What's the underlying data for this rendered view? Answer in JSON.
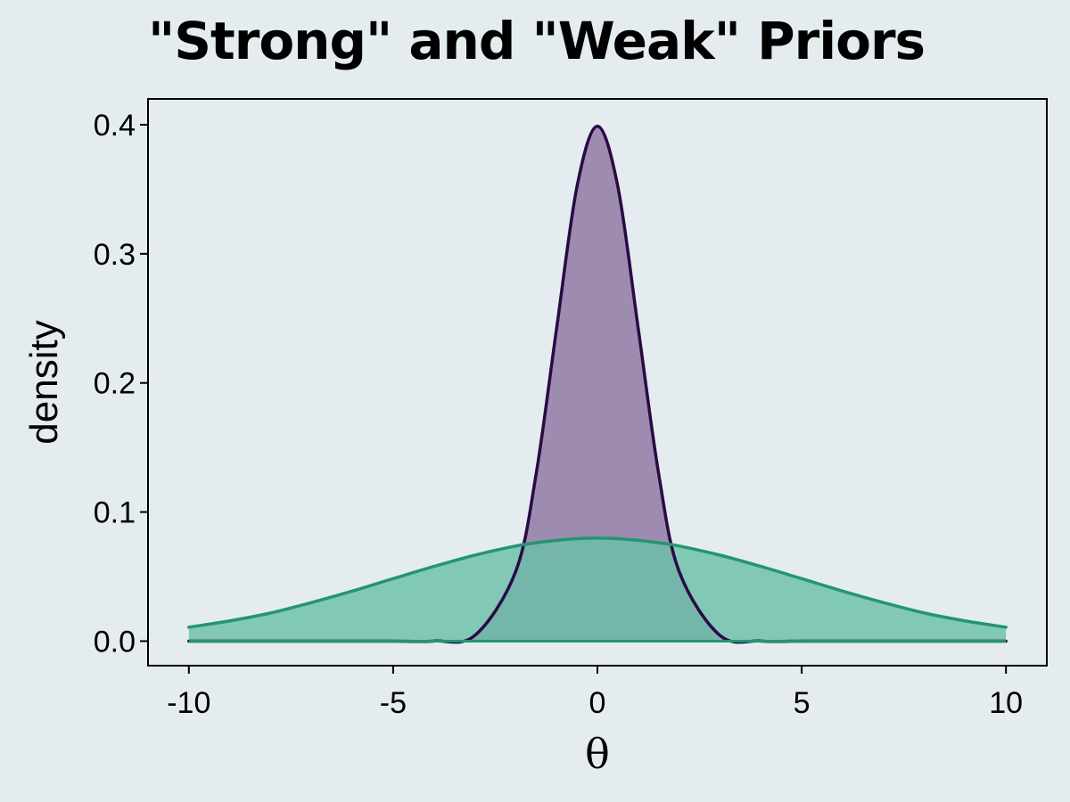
{
  "chart_data": {
    "type": "area",
    "title": "\"Strong\" and \"Weak\" Priors",
    "xlabel": "θ",
    "ylabel": "density",
    "xlim": [
      -11,
      11
    ],
    "ylim": [
      -0.019,
      0.42
    ],
    "x_ticks": [
      -10,
      -5,
      0,
      5,
      10
    ],
    "x_tick_labels": [
      "-10",
      "-5",
      "0",
      "5",
      "10"
    ],
    "y_ticks": [
      0.0,
      0.1,
      0.2,
      0.3,
      0.4
    ],
    "y_tick_labels": [
      "0.0",
      "0.1",
      "0.2",
      "0.3",
      "0.4"
    ],
    "grid": false,
    "legend": "none",
    "x": [
      -10,
      -9,
      -8,
      -7,
      -6,
      -5,
      -4,
      -3,
      -2,
      -1.5,
      -1,
      -0.5,
      0,
      0.5,
      1,
      1.5,
      2,
      3,
      4,
      5,
      6,
      7,
      8,
      9,
      10
    ],
    "series": [
      {
        "line_color": "#2a0a45",
        "fill_color": "#8e76a0",
        "values": [
          0.0,
          0.0,
          0.0,
          0.0,
          0.0,
          0.0,
          0.0001,
          0.0044,
          0.054,
          0.1295,
          0.242,
          0.3521,
          0.3989,
          0.3521,
          0.242,
          0.1295,
          0.054,
          0.0044,
          0.0001,
          0.0,
          0.0,
          0.0,
          0.0,
          0.0,
          0.0
        ]
      },
      {
        "line_color": "#239573",
        "fill_color": "#6cc0a8",
        "values": [
          0.0108,
          0.0157,
          0.0218,
          0.0299,
          0.0388,
          0.0484,
          0.0579,
          0.0666,
          0.0737,
          0.0762,
          0.0781,
          0.0794,
          0.0798,
          0.0794,
          0.0781,
          0.0762,
          0.0737,
          0.0666,
          0.0579,
          0.0484,
          0.0388,
          0.0299,
          0.0218,
          0.0157,
          0.0108
        ]
      }
    ]
  }
}
